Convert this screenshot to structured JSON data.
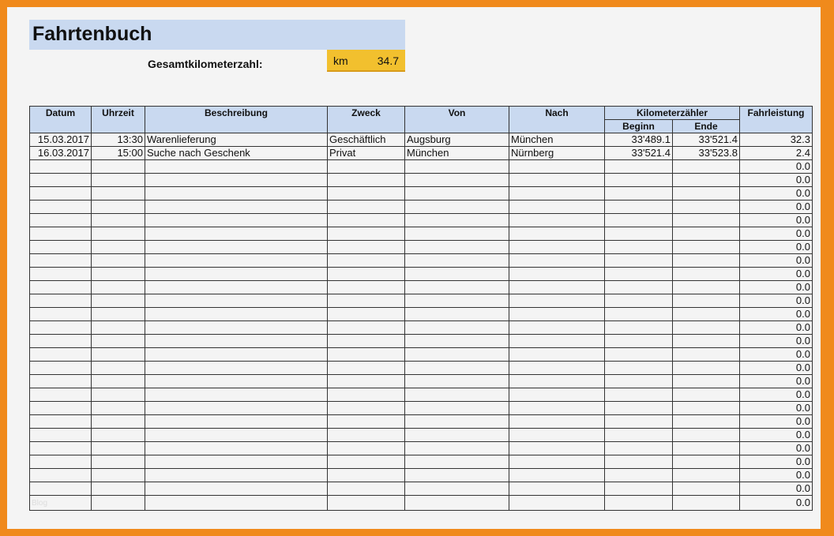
{
  "title": "Fahrtenbuch",
  "total": {
    "label": "Gesamtkilometerzahl:",
    "unit": "km",
    "value": "34.7"
  },
  "headers": {
    "datum": "Datum",
    "uhrzeit": "Uhrzeit",
    "beschreibung": "Beschreibung",
    "zweck": "Zweck",
    "von": "Von",
    "nach": "Nach",
    "kilometerzaehler": "Kilometerzähler",
    "beginn": "Beginn",
    "ende": "Ende",
    "fahrleistung": "Fahrleistung"
  },
  "rows": [
    {
      "datum": "15.03.2017",
      "uhrzeit": "13:30",
      "beschreibung": "Warenlieferung",
      "zweck": "Geschäftlich",
      "von": "Augsburg",
      "nach": "München",
      "beginn": "33'489.1",
      "ende": "33'521.4",
      "fahrleistung": "32.3"
    },
    {
      "datum": "16.03.2017",
      "uhrzeit": "15:00",
      "beschreibung": "Suche nach Geschenk",
      "zweck": "Privat",
      "von": "München",
      "nach": "Nürnberg",
      "beginn": "33'521.4",
      "ende": "33'523.8",
      "fahrleistung": "2.4"
    }
  ],
  "empty_row_value": "0.0",
  "empty_row_count": 26,
  "watermark": "Blog",
  "colors": {
    "frame": "#f08a1c",
    "header": "#c9d9f0",
    "total_box": "#f2c02e"
  }
}
